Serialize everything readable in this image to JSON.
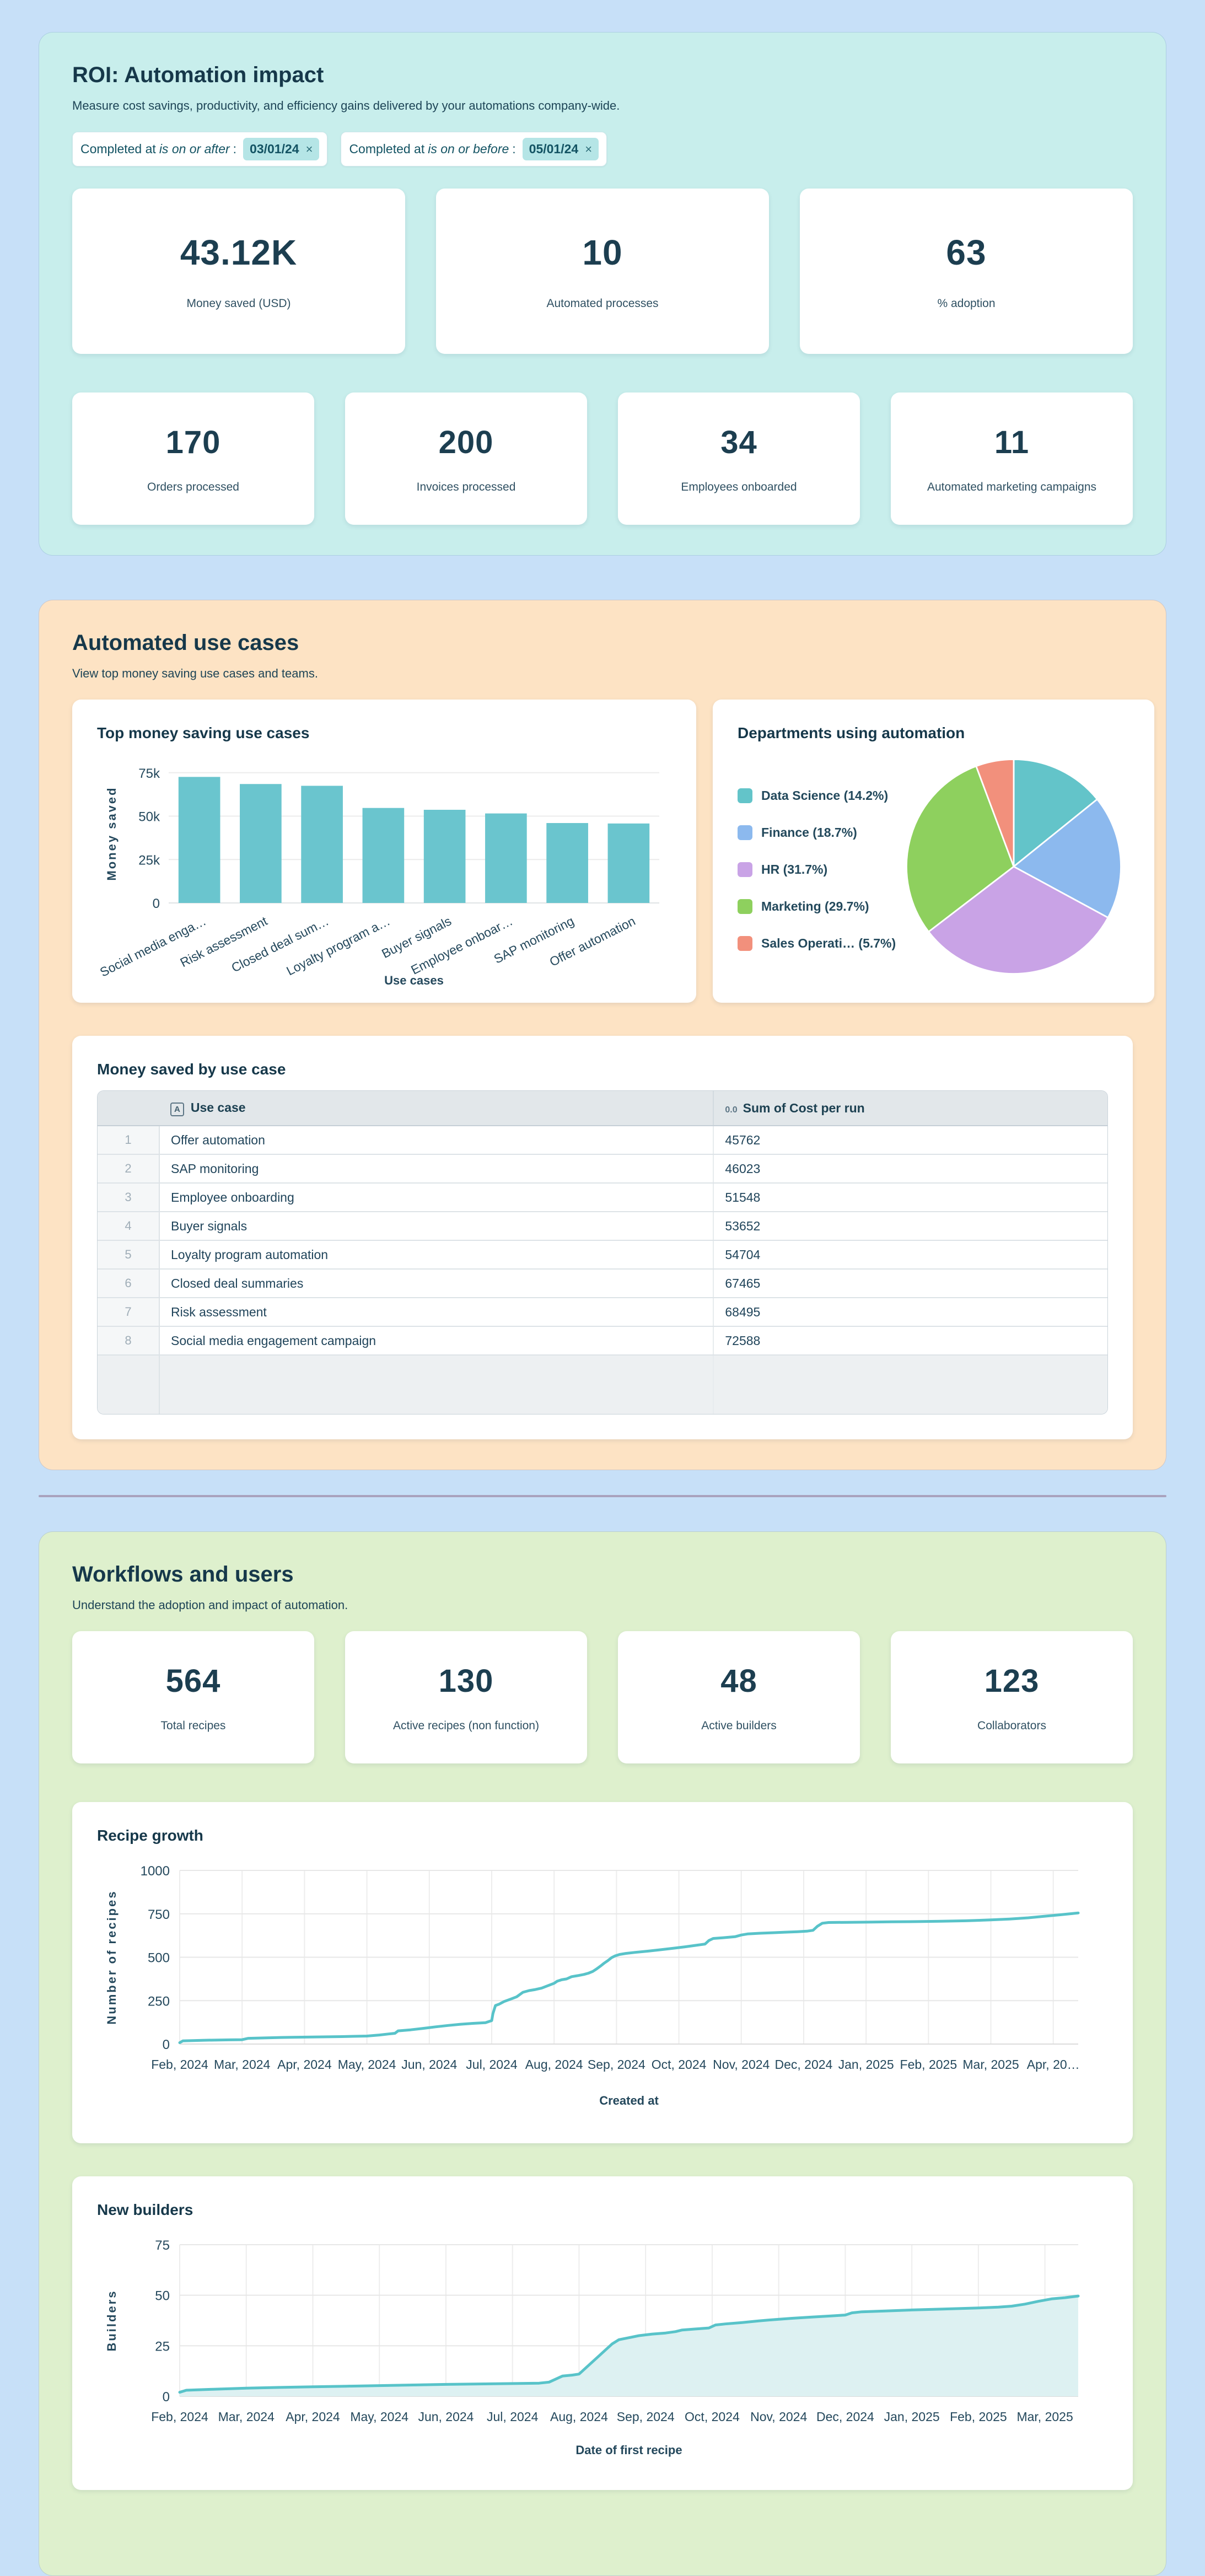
{
  "theme": {
    "page_bg": "#c7e0f8",
    "roi_panel_bg": "#c8eeec",
    "use_cases_panel_bg": "#fde3c4",
    "workflows_panel_bg": "#def0cd",
    "card_bg": "#ffffff",
    "heading_color": "#16384a",
    "accent_teal": "#6ac5ce",
    "chip_value_bg": "#b5e5e6",
    "divider_color": "#a9a2bd"
  },
  "roi": {
    "title": "ROI: Automation impact",
    "subtitle": "Measure cost savings, productivity, and efficiency gains delivered by your automations company-wide.",
    "filters": [
      {
        "prefix": "Completed at",
        "operator": "is on or after",
        "colon": ":",
        "value": "03/01/24",
        "remove_label": "×"
      },
      {
        "prefix": "Completed at",
        "operator": "is on or before",
        "colon": ":",
        "value": "05/01/24",
        "remove_label": "×"
      }
    ],
    "stats_row1": [
      {
        "value": "43.12K",
        "label": "Money saved (USD)"
      },
      {
        "value": "10",
        "label": "Automated processes"
      },
      {
        "value": "63",
        "label": "% adoption"
      }
    ],
    "stats_row2": [
      {
        "value": "170",
        "label": "Orders processed"
      },
      {
        "value": "200",
        "label": "Invoices processed"
      },
      {
        "value": "34",
        "label": "Employees onboarded"
      },
      {
        "value": "11",
        "label": "Automated marketing campaigns"
      }
    ]
  },
  "use_cases": {
    "title": "Automated use cases",
    "subtitle": "View top money saving use cases and teams.",
    "table": {
      "title": "Money saved by use case",
      "columns": [
        {
          "icon": "A",
          "label": "Use case"
        },
        {
          "icon": "0.0",
          "label": "Sum of Cost per run"
        }
      ],
      "rows": [
        [
          "1",
          "Offer automation",
          "45762"
        ],
        [
          "2",
          "SAP monitoring",
          "46023"
        ],
        [
          "3",
          "Employee onboarding",
          "51548"
        ],
        [
          "4",
          "Buyer signals",
          "53652"
        ],
        [
          "5",
          "Loyalty program automation",
          "54704"
        ],
        [
          "6",
          "Closed deal summaries",
          "67465"
        ],
        [
          "7",
          "Risk assessment",
          "68495"
        ],
        [
          "8",
          "Social media engagement campaign",
          "72588"
        ]
      ]
    }
  },
  "workflows": {
    "title": "Workflows and users",
    "subtitle": "Understand the adoption and impact of automation.",
    "stats": [
      {
        "value": "564",
        "label": "Total recipes"
      },
      {
        "value": "130",
        "label": "Active recipes (non function)"
      },
      {
        "value": "48",
        "label": "Active builders"
      },
      {
        "value": "123",
        "label": "Collaborators"
      }
    ]
  },
  "chart_data": [
    {
      "id": "top_money_saving_use_cases",
      "type": "bar",
      "title": "Top money saving use cases",
      "xlabel": "Use cases",
      "ylabel": "Money saved",
      "categories": [
        "Social media enga…",
        "Risk assessment",
        "Closed deal sum…",
        "Loyalty program a…",
        "Buyer signals",
        "Employee onboar…",
        "SAP monitoring",
        "Offer automation"
      ],
      "values": [
        72588,
        68495,
        67465,
        54704,
        53652,
        51548,
        46023,
        45762
      ],
      "yticks": [
        "0",
        "25k",
        "50k",
        "75k"
      ],
      "ytick_values": [
        0,
        25000,
        50000,
        75000
      ],
      "ymax": 80000,
      "grid": true,
      "bar_color": "#6ac5ce"
    },
    {
      "id": "departments_using_automation",
      "type": "pie",
      "title": "Departments using automation",
      "legend_position": "left",
      "slices": [
        {
          "label": "Data Science (14.2%)",
          "value": 14.2,
          "color": "#63c4c9"
        },
        {
          "label": "Finance (18.7%)",
          "value": 18.7,
          "color": "#8cb9ee"
        },
        {
          "label": "HR (31.7%)",
          "value": 31.7,
          "color": "#c9a3e6"
        },
        {
          "label": "Marketing (29.7%)",
          "value": 29.7,
          "color": "#8ed05e"
        },
        {
          "label": "Sales Operati…  (5.7%)",
          "value": 5.7,
          "color": "#f2907c"
        }
      ]
    },
    {
      "id": "recipe_growth",
      "type": "line",
      "title": "Recipe growth",
      "xlabel": "Created at",
      "ylabel": "Number of recipes",
      "x_ticks": [
        "Feb, 2024",
        "Mar, 2024",
        "Apr, 2024",
        "May, 2024",
        "Jun, 2024",
        "Jul, 2024",
        "Aug, 2024",
        "Sep, 2024",
        "Oct, 2024",
        "Nov, 2024",
        "Dec, 2024",
        "Jan, 2025",
        "Feb, 2025",
        "Mar, 2025",
        "Apr, 20…"
      ],
      "ytick_values": [
        0,
        250,
        500,
        750,
        1000
      ],
      "ymax": 1000,
      "xmax": 14.4,
      "grid": true,
      "color": "#58c3c9",
      "points": [
        [
          0,
          8
        ],
        [
          0.05,
          18
        ],
        [
          0.4,
          22
        ],
        [
          0.8,
          24
        ],
        [
          1,
          25
        ],
        [
          1.1,
          33
        ],
        [
          1.4,
          36
        ],
        [
          1.8,
          39
        ],
        [
          2.2,
          41
        ],
        [
          2.6,
          43
        ],
        [
          3,
          46
        ],
        [
          3.2,
          52
        ],
        [
          3.35,
          58
        ],
        [
          3.45,
          62
        ],
        [
          3.5,
          76
        ],
        [
          3.7,
          82
        ],
        [
          3.9,
          90
        ],
        [
          4.1,
          99
        ],
        [
          4.3,
          107
        ],
        [
          4.5,
          114
        ],
        [
          4.7,
          119
        ],
        [
          4.9,
          123
        ],
        [
          5,
          135
        ],
        [
          5.02,
          175
        ],
        [
          5.06,
          222
        ],
        [
          5.12,
          230
        ],
        [
          5.2,
          245
        ],
        [
          5.3,
          258
        ],
        [
          5.4,
          272
        ],
        [
          5.5,
          298
        ],
        [
          5.6,
          308
        ],
        [
          5.7,
          314
        ],
        [
          5.8,
          322
        ],
        [
          5.9,
          336
        ],
        [
          6,
          350
        ],
        [
          6.05,
          362
        ],
        [
          6.12,
          370
        ],
        [
          6.2,
          375
        ],
        [
          6.28,
          388
        ],
        [
          6.38,
          394
        ],
        [
          6.48,
          401
        ],
        [
          6.55,
          408
        ],
        [
          6.62,
          418
        ],
        [
          6.68,
          432
        ],
        [
          6.74,
          448
        ],
        [
          6.8,
          465
        ],
        [
          6.86,
          480
        ],
        [
          6.92,
          497
        ],
        [
          6.98,
          508
        ],
        [
          7.05,
          516
        ],
        [
          7.15,
          522
        ],
        [
          7.3,
          528
        ],
        [
          7.5,
          535
        ],
        [
          7.7,
          543
        ],
        [
          7.9,
          551
        ],
        [
          8.1,
          560
        ],
        [
          8.3,
          570
        ],
        [
          8.42,
          576
        ],
        [
          8.48,
          596
        ],
        [
          8.55,
          608
        ],
        [
          8.7,
          612
        ],
        [
          8.9,
          618
        ],
        [
          9,
          628
        ],
        [
          9.1,
          634
        ],
        [
          9.3,
          638
        ],
        [
          9.5,
          641
        ],
        [
          9.7,
          644
        ],
        [
          9.9,
          647
        ],
        [
          10.05,
          650
        ],
        [
          10.15,
          655
        ],
        [
          10.22,
          678
        ],
        [
          10.3,
          696
        ],
        [
          10.4,
          700
        ],
        [
          10.7,
          701
        ],
        [
          11,
          702
        ],
        [
          11.4,
          704
        ],
        [
          11.8,
          705
        ],
        [
          12.2,
          707
        ],
        [
          12.6,
          710
        ],
        [
          13,
          715
        ],
        [
          13.3,
          720
        ],
        [
          13.6,
          727
        ],
        [
          13.9,
          737
        ],
        [
          14.1,
          744
        ],
        [
          14.3,
          751
        ],
        [
          14.4,
          755
        ]
      ]
    },
    {
      "id": "new_builders",
      "type": "area",
      "title": "New builders",
      "xlabel": "Date of first recipe",
      "ylabel": "Builders",
      "x_ticks": [
        "Feb, 2024",
        "Mar, 2024",
        "Apr, 2024",
        "May, 2024",
        "Jun, 2024",
        "Jul, 2024",
        "Aug, 2024",
        "Sep, 2024",
        "Oct, 2024",
        "Nov, 2024",
        "Dec, 2024",
        "Jan, 2025",
        "Feb, 2025",
        "Mar, 2025"
      ],
      "ytick_values": [
        0,
        25,
        50,
        75
      ],
      "ymax": 75,
      "xmax": 13.5,
      "grid": true,
      "color": "#58c3c9",
      "fill": "#ddf1f2",
      "points": [
        [
          0,
          2
        ],
        [
          0.1,
          3
        ],
        [
          0.5,
          3.5
        ],
        [
          1,
          4
        ],
        [
          1.5,
          4.4
        ],
        [
          2,
          4.7
        ],
        [
          2.5,
          5
        ],
        [
          3,
          5.3
        ],
        [
          3.5,
          5.6
        ],
        [
          4,
          5.9
        ],
        [
          4.5,
          6.1
        ],
        [
          5,
          6.3
        ],
        [
          5.4,
          6.5
        ],
        [
          5.55,
          7
        ],
        [
          5.65,
          8.5
        ],
        [
          5.75,
          10
        ],
        [
          5.9,
          10.5
        ],
        [
          6,
          11
        ],
        [
          6.05,
          12.5
        ],
        [
          6.1,
          14
        ],
        [
          6.2,
          17
        ],
        [
          6.3,
          20
        ],
        [
          6.4,
          23
        ],
        [
          6.5,
          26
        ],
        [
          6.6,
          28
        ],
        [
          6.75,
          29
        ],
        [
          6.9,
          30
        ],
        [
          7.1,
          30.8
        ],
        [
          7.3,
          31.3
        ],
        [
          7.45,
          32
        ],
        [
          7.55,
          32.8
        ],
        [
          7.75,
          33.3
        ],
        [
          7.95,
          33.8
        ],
        [
          8.05,
          35.3
        ],
        [
          8.2,
          35.8
        ],
        [
          8.45,
          36.5
        ],
        [
          8.7,
          37.3
        ],
        [
          8.95,
          38
        ],
        [
          9.2,
          38.6
        ],
        [
          9.5,
          39.2
        ],
        [
          9.8,
          39.8
        ],
        [
          10,
          40.2
        ],
        [
          10.1,
          41.3
        ],
        [
          10.25,
          41.8
        ],
        [
          10.6,
          42.2
        ],
        [
          11,
          42.7
        ],
        [
          11.5,
          43.2
        ],
        [
          12,
          43.7
        ],
        [
          12.3,
          44.1
        ],
        [
          12.5,
          44.6
        ],
        [
          12.7,
          45.6
        ],
        [
          12.9,
          47
        ],
        [
          13.1,
          48.2
        ],
        [
          13.3,
          48.8
        ],
        [
          13.5,
          49.6
        ]
      ]
    }
  ]
}
